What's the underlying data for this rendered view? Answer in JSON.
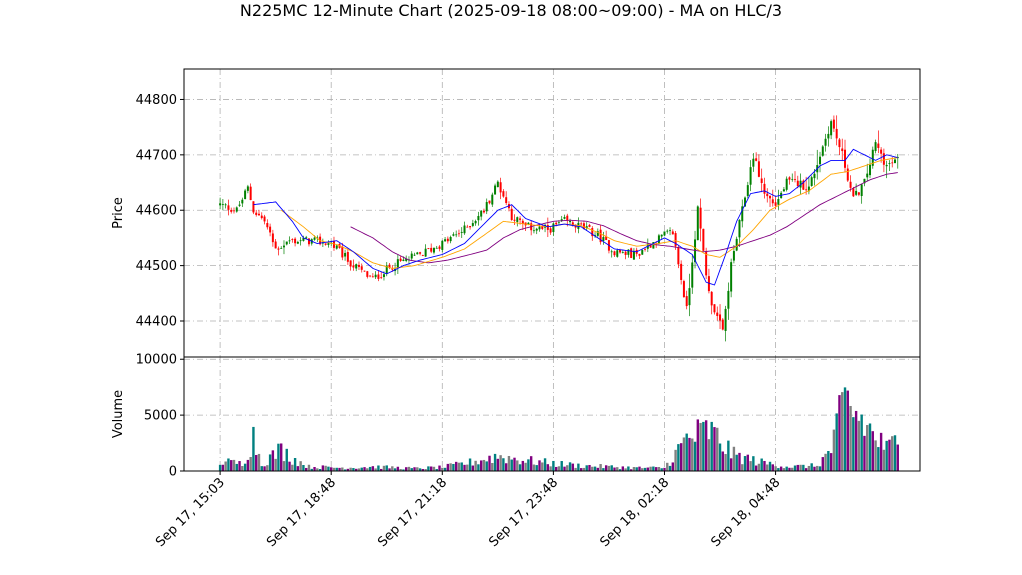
{
  "chart_data": {
    "type": "candlestick",
    "title": "N225MC 12-Minute Chart (2025-09-18 08:00~09:00) - MA on HLC/3",
    "price_panel": {
      "ylabel": "Price",
      "yticks": [
        44400,
        44500,
        44600,
        44700,
        44800
      ],
      "ylim": [
        44335,
        44855
      ],
      "grid": true
    },
    "volume_panel": {
      "ylabel": "Volume",
      "yticks": [
        0,
        5000,
        10000
      ],
      "ylim": [
        0,
        10200
      ],
      "grid": true
    },
    "xticks": [
      {
        "index": 0,
        "label": "Sep 17, 15:03"
      },
      {
        "index": 40,
        "label": "Sep 17, 18:48"
      },
      {
        "index": 80,
        "label": "Sep 17, 21:18"
      },
      {
        "index": 120,
        "label": "Sep 17, 23:48"
      },
      {
        "index": 160,
        "label": "Sep 18, 02:18"
      },
      {
        "index": 200,
        "label": "Sep 18, 04:48"
      }
    ],
    "xlim": [
      -13,
      252
    ],
    "close_anchors": [
      [
        0,
        44610
      ],
      [
        6,
        44600
      ],
      [
        10,
        44640
      ],
      [
        12,
        44600
      ],
      [
        16,
        44580
      ],
      [
        20,
        44530
      ],
      [
        25,
        44545
      ],
      [
        32,
        44545
      ],
      [
        40,
        44540
      ],
      [
        48,
        44500
      ],
      [
        55,
        44475
      ],
      [
        62,
        44500
      ],
      [
        72,
        44520
      ],
      [
        80,
        44540
      ],
      [
        88,
        44565
      ],
      [
        95,
        44600
      ],
      [
        100,
        44650
      ],
      [
        105,
        44590
      ],
      [
        110,
        44570
      ],
      [
        118,
        44565
      ],
      [
        124,
        44580
      ],
      [
        130,
        44570
      ],
      [
        136,
        44555
      ],
      [
        142,
        44525
      ],
      [
        150,
        44520
      ],
      [
        155,
        44540
      ],
      [
        160,
        44555
      ],
      [
        163,
        44560
      ],
      [
        168,
        44420
      ],
      [
        172,
        44600
      ],
      [
        176,
        44450
      ],
      [
        178,
        44420
      ],
      [
        181,
        44380
      ],
      [
        184,
        44500
      ],
      [
        188,
        44600
      ],
      [
        192,
        44700
      ],
      [
        196,
        44630
      ],
      [
        200,
        44610
      ],
      [
        204,
        44650
      ],
      [
        208,
        44650
      ],
      [
        212,
        44640
      ],
      [
        220,
        44760
      ],
      [
        224,
        44700
      ],
      [
        228,
        44620
      ],
      [
        232,
        44650
      ],
      [
        236,
        44720
      ],
      [
        240,
        44680
      ],
      [
        244,
        44690
      ]
    ],
    "volume_anchors": [
      [
        0,
        900
      ],
      [
        8,
        700
      ],
      [
        12,
        3200
      ],
      [
        15,
        700
      ],
      [
        22,
        2000
      ],
      [
        26,
        1200
      ],
      [
        32,
        400
      ],
      [
        45,
        300
      ],
      [
        55,
        400
      ],
      [
        70,
        250
      ],
      [
        80,
        350
      ],
      [
        90,
        800
      ],
      [
        100,
        1400
      ],
      [
        110,
        1000
      ],
      [
        120,
        700
      ],
      [
        130,
        500
      ],
      [
        140,
        400
      ],
      [
        150,
        300
      ],
      [
        160,
        300
      ],
      [
        168,
        3000
      ],
      [
        176,
        3800
      ],
      [
        185,
        1500
      ],
      [
        195,
        800
      ],
      [
        205,
        400
      ],
      [
        215,
        500
      ],
      [
        220,
        2000
      ],
      [
        225,
        6500
      ],
      [
        230,
        5000
      ],
      [
        235,
        3500
      ],
      [
        240,
        2000
      ],
      [
        244,
        3000
      ]
    ],
    "ma_fast_anchors": [
      [
        12,
        44610
      ],
      [
        20,
        44615
      ],
      [
        26,
        44580
      ],
      [
        30,
        44550
      ],
      [
        35,
        44540
      ],
      [
        42,
        44545
      ],
      [
        48,
        44525
      ],
      [
        55,
        44495
      ],
      [
        60,
        44485
      ],
      [
        66,
        44500
      ],
      [
        72,
        44510
      ],
      [
        80,
        44520
      ],
      [
        88,
        44540
      ],
      [
        95,
        44575
      ],
      [
        100,
        44600
      ],
      [
        105,
        44610
      ],
      [
        110,
        44585
      ],
      [
        118,
        44570
      ],
      [
        124,
        44575
      ],
      [
        130,
        44570
      ],
      [
        136,
        44550
      ],
      [
        142,
        44530
      ],
      [
        150,
        44525
      ],
      [
        156,
        44540
      ],
      [
        160,
        44550
      ],
      [
        164,
        44540
      ],
      [
        170,
        44520
      ],
      [
        175,
        44470
      ],
      [
        178,
        44465
      ],
      [
        182,
        44520
      ],
      [
        186,
        44580
      ],
      [
        191,
        44630
      ],
      [
        196,
        44635
      ],
      [
        200,
        44625
      ],
      [
        205,
        44630
      ],
      [
        210,
        44650
      ],
      [
        216,
        44680
      ],
      [
        220,
        44690
      ],
      [
        225,
        44690
      ],
      [
        228,
        44710
      ],
      [
        232,
        44700
      ],
      [
        236,
        44690
      ],
      [
        240,
        44700
      ],
      [
        244,
        44695
      ]
    ],
    "ma_mid_anchors": [
      [
        22,
        44600
      ],
      [
        30,
        44570
      ],
      [
        36,
        44545
      ],
      [
        42,
        44538
      ],
      [
        48,
        44525
      ],
      [
        55,
        44505
      ],
      [
        62,
        44495
      ],
      [
        70,
        44500
      ],
      [
        80,
        44515
      ],
      [
        88,
        44530
      ],
      [
        95,
        44555
      ],
      [
        102,
        44580
      ],
      [
        110,
        44575
      ],
      [
        118,
        44570
      ],
      [
        124,
        44575
      ],
      [
        130,
        44572
      ],
      [
        136,
        44560
      ],
      [
        142,
        44545
      ],
      [
        150,
        44535
      ],
      [
        158,
        44540
      ],
      [
        164,
        44545
      ],
      [
        170,
        44535
      ],
      [
        175,
        44520
      ],
      [
        180,
        44515
      ],
      [
        186,
        44535
      ],
      [
        192,
        44565
      ],
      [
        198,
        44600
      ],
      [
        205,
        44620
      ],
      [
        212,
        44635
      ],
      [
        220,
        44665
      ],
      [
        226,
        44670
      ],
      [
        232,
        44680
      ],
      [
        238,
        44690
      ],
      [
        244,
        44695
      ]
    ],
    "ma_slow_anchors": [
      [
        47,
        44570
      ],
      [
        55,
        44550
      ],
      [
        62,
        44525
      ],
      [
        68,
        44510
      ],
      [
        75,
        44505
      ],
      [
        82,
        44510
      ],
      [
        90,
        44520
      ],
      [
        96,
        44528
      ],
      [
        102,
        44550
      ],
      [
        108,
        44565
      ],
      [
        114,
        44573
      ],
      [
        120,
        44580
      ],
      [
        126,
        44582
      ],
      [
        132,
        44580
      ],
      [
        138,
        44572
      ],
      [
        144,
        44558
      ],
      [
        150,
        44545
      ],
      [
        156,
        44538
      ],
      [
        162,
        44535
      ],
      [
        168,
        44530
      ],
      [
        174,
        44525
      ],
      [
        180,
        44528
      ],
      [
        186,
        44535
      ],
      [
        192,
        44545
      ],
      [
        198,
        44555
      ],
      [
        204,
        44570
      ],
      [
        210,
        44590
      ],
      [
        216,
        44610
      ],
      [
        222,
        44625
      ],
      [
        228,
        44640
      ],
      [
        234,
        44655
      ],
      [
        240,
        44665
      ],
      [
        244,
        44668
      ]
    ],
    "colors": {
      "up": "#008000",
      "down": "#ff0000",
      "ma_fast": "#0000ff",
      "ma_mid": "#ffa500",
      "ma_slow": "#800080",
      "volume": [
        "#008080",
        "#800080",
        "#808080"
      ],
      "grid": "#b0b0b0"
    },
    "n_bars": 245
  }
}
